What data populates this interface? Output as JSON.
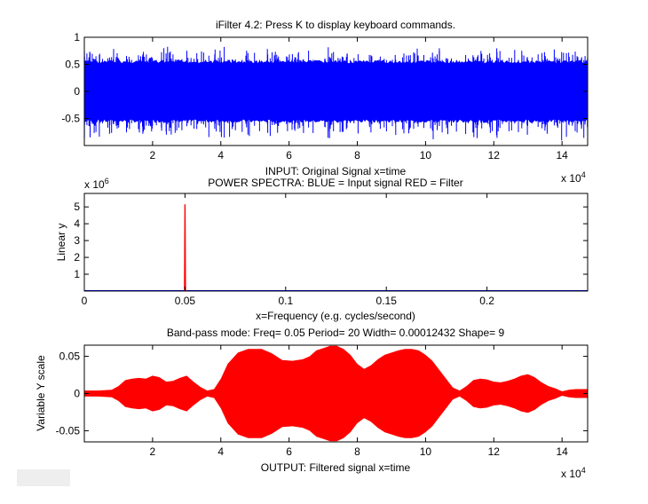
{
  "window": {
    "title_text": "iFilter 4.2:        Press K to display keyboard commands."
  },
  "chart_data": [
    {
      "type": "line",
      "title": "iFilter 4.2:        Press K to display keyboard commands.",
      "xlabel": "INPUT: Original Signal    x=time",
      "ylabel": "",
      "xlim": [
        0,
        147500
      ],
      "ylim": [
        -1,
        1
      ],
      "x_exponent_label": "x 10",
      "x_exponent_power": "4",
      "x_ticks": [
        20000,
        40000,
        60000,
        80000,
        100000,
        120000,
        140000
      ],
      "x_tick_labels": [
        "2",
        "4",
        "6",
        "8",
        "10",
        "12",
        "14"
      ],
      "y_ticks": [
        -0.5,
        0,
        0.5,
        1
      ],
      "y_tick_labels": [
        "-0.5",
        "0",
        "0.5",
        "1"
      ],
      "series": [
        {
          "color": "#0000ff",
          "envelope_max": 0.58,
          "envelope_min": -0.58,
          "peak_max": 0.85,
          "peak_min": -0.95
        }
      ],
      "grid": false
    },
    {
      "type": "line",
      "title": "POWER SPECTRA:  BLUE = Input signal    RED = Filter",
      "xlabel": "x=Frequency (e.g. cycles/second)",
      "ylabel": "Linear y",
      "xlim": [
        0,
        0.25
      ],
      "ylim": [
        0,
        5.8
      ],
      "y_exponent_label": "x 10",
      "y_exponent_power": "6",
      "x_ticks": [
        0,
        0.05,
        0.1,
        0.15,
        0.2
      ],
      "x_tick_labels": [
        "0",
        "0.05",
        "0.1",
        "0.15",
        "0.2"
      ],
      "y_ticks": [
        1,
        2,
        3,
        4,
        5
      ],
      "y_tick_labels": [
        "1",
        "2",
        "3",
        "4",
        "5"
      ],
      "series": [
        {
          "color": "#0000ff",
          "x": [
            0,
            0.25
          ],
          "y": [
            0.02,
            0.02
          ]
        },
        {
          "color": "#ff0000",
          "x": [
            0.0498,
            0.05,
            0.0502
          ],
          "y": [
            0,
            5.15,
            0
          ]
        }
      ],
      "grid": false
    },
    {
      "type": "area",
      "title": "Band-pass mode:  Freq= 0.05     Period= 20    Width= 0.00012432      Shape=  9",
      "xlabel": "OUTPUT: Filtered signal    x=time",
      "ylabel": "Variable Y scale",
      "xlim": [
        0,
        147500
      ],
      "ylim": [
        -0.065,
        0.065
      ],
      "x_exponent_label": "x 10",
      "x_exponent_power": "4",
      "x_ticks": [
        20000,
        40000,
        60000,
        80000,
        100000,
        120000,
        140000
      ],
      "x_tick_labels": [
        "2",
        "4",
        "6",
        "8",
        "10",
        "12",
        "14"
      ],
      "y_ticks": [
        -0.05,
        0,
        0.05
      ],
      "y_tick_labels": [
        "-0.05",
        "0",
        "0.05"
      ],
      "series": [
        {
          "color": "#ff0000",
          "x": [
            0,
            4000,
            8000,
            10000,
            12000,
            14000,
            16000,
            18000,
            20000,
            22000,
            24000,
            26000,
            28000,
            30000,
            32000,
            34000,
            36000,
            38000,
            40000,
            42000,
            45000,
            48000,
            52000,
            55000,
            58000,
            61000,
            64000,
            66000,
            68000,
            70000,
            72000,
            74000,
            76000,
            78000,
            80000,
            82000,
            84000,
            86000,
            88000,
            90000,
            92000,
            94000,
            96000,
            98000,
            100000,
            102000,
            104000,
            106000,
            108000,
            110000,
            112000,
            114000,
            116000,
            118000,
            120000,
            122000,
            124000,
            126000,
            128000,
            130000,
            132000,
            134000,
            136000,
            138000,
            140000,
            142000,
            144000,
            147500
          ],
          "amplitude": [
            0.004,
            0.004,
            0.005,
            0.01,
            0.018,
            0.02,
            0.021,
            0.02,
            0.024,
            0.022,
            0.016,
            0.017,
            0.021,
            0.024,
            0.016,
            0.009,
            0.004,
            0.006,
            0.02,
            0.04,
            0.055,
            0.06,
            0.06,
            0.054,
            0.045,
            0.044,
            0.046,
            0.05,
            0.058,
            0.061,
            0.064,
            0.064,
            0.06,
            0.052,
            0.04,
            0.033,
            0.038,
            0.046,
            0.052,
            0.055,
            0.058,
            0.06,
            0.06,
            0.058,
            0.052,
            0.044,
            0.032,
            0.02,
            0.008,
            0.004,
            0.01,
            0.018,
            0.02,
            0.019,
            0.016,
            0.015,
            0.017,
            0.02,
            0.024,
            0.026,
            0.022,
            0.015,
            0.01,
            0.007,
            0.003,
            0.005,
            0.006,
            0.006
          ]
        }
      ],
      "grid": false
    }
  ]
}
